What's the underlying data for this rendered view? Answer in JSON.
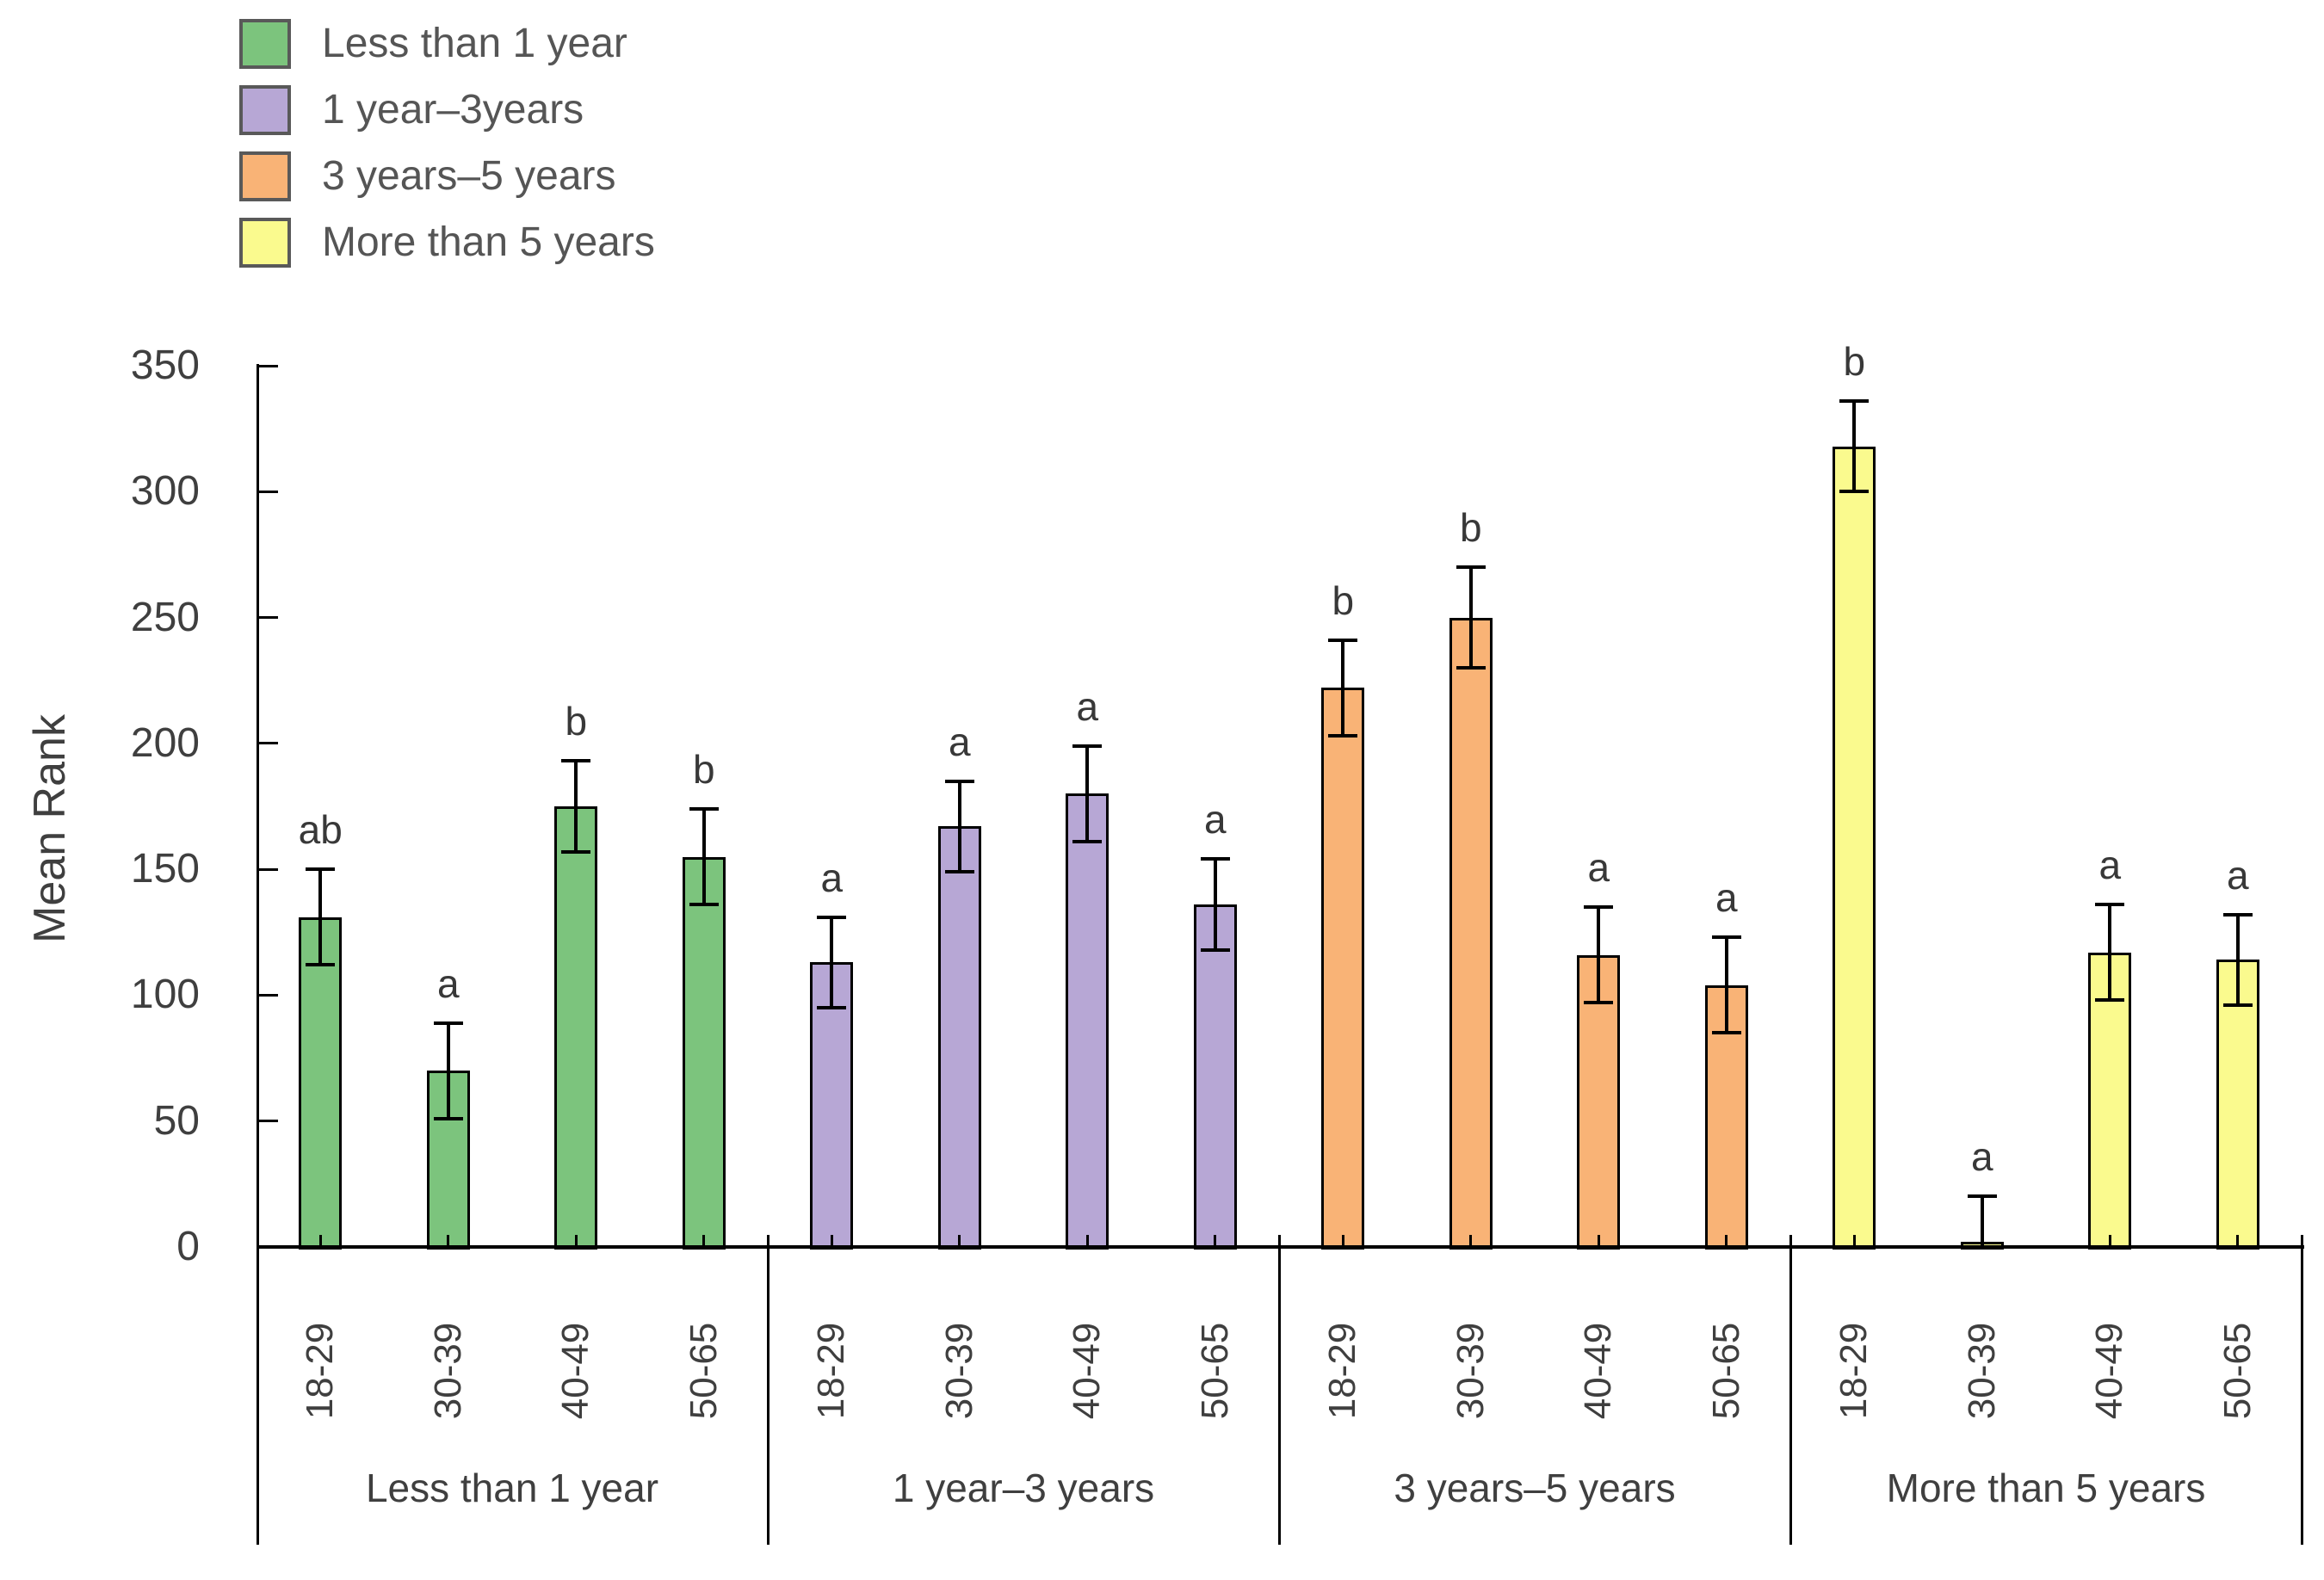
{
  "legend": {
    "items": [
      {
        "label": "Less than 1 year",
        "color": "#7CC47D"
      },
      {
        "label": "1 year–3years",
        "color": "#B7A7D5"
      },
      {
        "label": "3 years–5 years",
        "color": "#F9B376"
      },
      {
        "label": "More than 5 years",
        "color": "#FAFA8E"
      }
    ]
  },
  "chart_data": {
    "type": "bar",
    "title": "",
    "xlabel": "",
    "ylabel": "Mean Rank",
    "ylim": [
      0,
      350
    ],
    "yticks": [
      0,
      50,
      100,
      150,
      200,
      250,
      300,
      350
    ],
    "grid": false,
    "legend_position": "top-left",
    "age_categories": [
      "18-29",
      "30-39",
      "40-49",
      "50-65"
    ],
    "error_bars": true,
    "groups": [
      {
        "label": "Less than 1 year",
        "color": "#7CC47D",
        "bars": [
          {
            "age": "18-29",
            "value": 131,
            "error": 19,
            "sig": "ab"
          },
          {
            "age": "30-39",
            "value": 70,
            "error": 19,
            "sig": "a"
          },
          {
            "age": "40-49",
            "value": 175,
            "error": 18,
            "sig": "b"
          },
          {
            "age": "50-65",
            "value": 155,
            "error": 19,
            "sig": "b"
          }
        ]
      },
      {
        "label": "1 year–3 years",
        "color": "#B7A7D5",
        "bars": [
          {
            "age": "18-29",
            "value": 113,
            "error": 18,
            "sig": "a"
          },
          {
            "age": "30-39",
            "value": 167,
            "error": 18,
            "sig": "a"
          },
          {
            "age": "40-49",
            "value": 180,
            "error": 19,
            "sig": "a"
          },
          {
            "age": "50-65",
            "value": 136,
            "error": 18,
            "sig": "a"
          }
        ]
      },
      {
        "label": "3 years–5 years",
        "color": "#F9B376",
        "bars": [
          {
            "age": "18-29",
            "value": 222,
            "error": 19,
            "sig": "b"
          },
          {
            "age": "30-39",
            "value": 250,
            "error": 20,
            "sig": "b"
          },
          {
            "age": "40-49",
            "value": 116,
            "error": 19,
            "sig": "a"
          },
          {
            "age": "50-65",
            "value": 104,
            "error": 19,
            "sig": "a"
          }
        ]
      },
      {
        "label": "More than 5 years",
        "color": "#FAFA8E",
        "bars": [
          {
            "age": "18-29",
            "value": 318,
            "error": 18,
            "sig": "b"
          },
          {
            "age": "30-39",
            "value": 2,
            "error": 18,
            "sig": "a"
          },
          {
            "age": "40-49",
            "value": 117,
            "error": 19,
            "sig": "a"
          },
          {
            "age": "50-65",
            "value": 114,
            "error": 18,
            "sig": "a"
          }
        ]
      }
    ]
  }
}
